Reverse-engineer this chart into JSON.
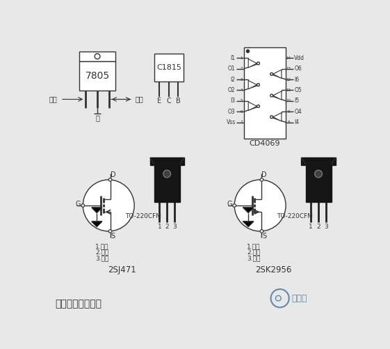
{
  "bg_color": "#e8e8e8",
  "line_color": "#333333",
  "title": "逆变器所用元器件",
  "label_7805": "7805",
  "label_c1815": "C1815",
  "label_cd4069": "CD4069",
  "label_2sj471": "2SJ471",
  "label_2sk2956": "2SK2956",
  "label_to220": "TO-220CFM",
  "input_label": "输入",
  "output_label": "输出",
  "ground_label": "地",
  "ecb_labels": [
    "E",
    "C",
    "B"
  ],
  "mosfet_labels": [
    "1.栅极",
    "2.漏极",
    "3.源极"
  ],
  "cd4069_left_pins": [
    "I1",
    "O1",
    "I2",
    "O2",
    "I3",
    "O3",
    "Vss"
  ],
  "cd4069_right_pins": [
    "Vdd",
    "O6",
    "I6",
    "O5",
    "I5",
    "O4",
    "I4"
  ],
  "watermark_text": "百月辰"
}
